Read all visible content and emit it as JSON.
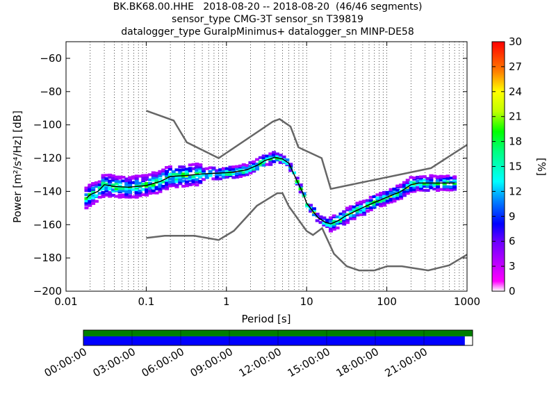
{
  "title_lines": [
    "BK.BK68.00.HHE   2018-08-20 -- 2018-08-20  (46/46 segments)",
    "sensor_type CMG-3T sensor_sn T39819",
    "datalogger_type GuralpMinimus+ datalogger_sn MINP-DE58"
  ],
  "chart_data": {
    "type": "heatmap",
    "title": "BK.BK68.00.HHE   2018-08-20 -- 2018-08-20  (46/46 segments)",
    "xlabel": "Period [s]",
    "ylabel": "Power [m²/s⁴/Hz] [dB]",
    "x_scale": "log",
    "xlim": [
      0.01,
      1000
    ],
    "ylim": [
      -200,
      -50
    ],
    "x_ticks": [
      0.01,
      0.1,
      1,
      10,
      100,
      1000
    ],
    "x_tick_labels": [
      "0.01",
      "0.1",
      "1",
      "10",
      "100",
      "1000"
    ],
    "y_ticks": [
      -200,
      -180,
      -160,
      -140,
      -120,
      -100,
      -80,
      -60
    ],
    "y_tick_labels": [
      "−200",
      "−180",
      "−160",
      "−140",
      "−120",
      "−100",
      "−80",
      "−60"
    ],
    "grid": "dotted vertical",
    "colorbar": {
      "label": "[%]",
      "min": 0,
      "max": 30,
      "ticks": [
        0,
        3,
        6,
        9,
        12,
        15,
        18,
        21,
        24,
        27,
        30
      ]
    },
    "nhnm_curve": {
      "x": [
        0.1,
        0.22,
        0.32,
        0.8,
        3.8,
        4.6,
        6.3,
        7.9,
        15.4,
        20,
        354.8,
        1000
      ],
      "y": [
        -91.5,
        -97.4,
        -110.5,
        -120,
        -98,
        -96.5,
        -101,
        -113.5,
        -120,
        -138.5,
        -126,
        -112
      ]
    },
    "nlnm_curve": {
      "x": [
        0.1,
        0.17,
        0.4,
        0.8,
        1.24,
        2.4,
        4.3,
        5,
        6,
        10,
        12,
        15.6,
        21.9,
        31.6,
        45,
        70,
        101,
        154,
        328,
        600,
        1000
      ],
      "y": [
        -168,
        -166.7,
        -166.7,
        -169.2,
        -163.7,
        -148.6,
        -141.1,
        -141.1,
        -149,
        -163.8,
        -166.2,
        -162.1,
        -177.5,
        -185,
        -187.5,
        -187.5,
        -185,
        -185,
        -187.5,
        -184.4,
        -178
      ]
    },
    "mode_curve": {
      "x": [
        0.018,
        0.02,
        0.025,
        0.03,
        0.04,
        0.06,
        0.1,
        0.15,
        0.2,
        0.3,
        0.5,
        0.8,
        1.2,
        1.8,
        2.5,
        3,
        3.5,
        4,
        5,
        6,
        7,
        8,
        9,
        10,
        12,
        14,
        17,
        20,
        25,
        30,
        40,
        60,
        80,
        100,
        150,
        200,
        250,
        300,
        400,
        500,
        600,
        700
      ],
      "y": [
        -144,
        -142,
        -140,
        -136,
        -137,
        -137.5,
        -136.5,
        -134,
        -131,
        -130.5,
        -129.5,
        -129,
        -128.5,
        -127,
        -124,
        -121.5,
        -120.5,
        -119.5,
        -120.5,
        -123,
        -130,
        -136,
        -141,
        -147,
        -152,
        -156,
        -158.5,
        -159.5,
        -157.5,
        -155,
        -152,
        -148,
        -145.5,
        -143.5,
        -140,
        -136,
        -135,
        -135,
        -135,
        -135,
        -135,
        -135
      ]
    },
    "time_bar": {
      "tick_labels": [
        "00:00:00",
        "03:00:00",
        "06:00:00",
        "09:00:00",
        "12:00:00",
        "15:00:00",
        "18:00:00",
        "21:00:00"
      ],
      "green_coverage_fraction": 1.0,
      "blue_coverage_fraction": 0.98
    }
  },
  "colors": {
    "curve_gray": "#666666",
    "mode_line": "#000000",
    "time_green": "#007f00",
    "time_blue": "#0000ff"
  }
}
